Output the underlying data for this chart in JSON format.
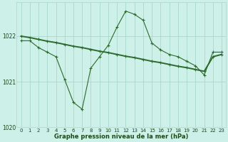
{
  "hours": [
    0,
    1,
    2,
    3,
    4,
    5,
    6,
    7,
    8,
    9,
    10,
    11,
    12,
    13,
    14,
    15,
    16,
    17,
    18,
    19,
    20,
    21,
    22,
    23
  ],
  "pressure_jagged": [
    1021.9,
    1021.9,
    1021.75,
    1021.65,
    1021.55,
    1021.05,
    1020.55,
    1020.4,
    1021.3,
    1021.55,
    1021.8,
    1022.2,
    1022.55,
    1022.48,
    1022.35,
    1021.85,
    1021.7,
    1021.6,
    1021.55,
    1021.45,
    1021.35,
    1021.15,
    1021.65,
    1021.65
  ],
  "pressure_trend": [
    1022.0,
    1021.97,
    1021.93,
    1021.89,
    1021.86,
    1021.82,
    1021.78,
    1021.75,
    1021.71,
    1021.67,
    1021.64,
    1021.6,
    1021.56,
    1021.53,
    1021.49,
    1021.45,
    1021.42,
    1021.38,
    1021.34,
    1021.31,
    1021.27,
    1021.23,
    1021.55,
    1021.6
  ],
  "line_color": "#2d6a2d",
  "marker": "+",
  "bg_color": "#cdf0e8",
  "grid_color": "#a8d8cc",
  "text_color": "#1a4a1a",
  "xlabel": "Graphe pression niveau de la mer (hPa)",
  "ylim": [
    1020.0,
    1022.75
  ],
  "yticks": [
    1020,
    1021,
    1022
  ],
  "xtick_labels": [
    "0",
    "1",
    "2",
    "3",
    "4",
    "5",
    "6",
    "7",
    "8",
    "9",
    "10",
    "11",
    "12",
    "13",
    "14",
    "15",
    "16",
    "17",
    "18",
    "19",
    "20",
    "21",
    "22",
    "23"
  ],
  "jagged_lw": 0.8,
  "trend_lw": 1.4,
  "marker_size": 3,
  "marker_lw": 0.8,
  "tick_fontsize": 5,
  "xlabel_fontsize": 6,
  "xlabel_fontweight": "bold"
}
